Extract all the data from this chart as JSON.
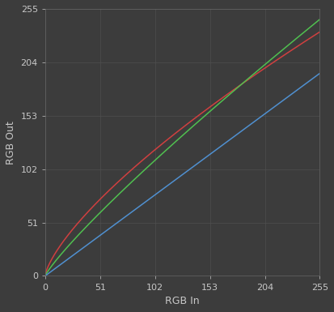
{
  "title": "",
  "xlabel": "RGB In",
  "ylabel": "RGB Out",
  "xlim": [
    0,
    255
  ],
  "ylim": [
    0,
    255
  ],
  "xticks": [
    0,
    51,
    102,
    153,
    204,
    255
  ],
  "yticks": [
    0,
    51,
    102,
    153,
    204,
    255
  ],
  "background_color": "#3c3c3c",
  "axes_color": "#3c3c3c",
  "grid_color": "#525252",
  "text_color": "#c8c8c8",
  "line_blue_color": "#5090d0",
  "line_green_color": "#50c050",
  "line_red_color": "#d04040",
  "blue_out_max": 193.49,
  "green_out_max": 245.055,
  "red_out_max": 233.07,
  "blue_gamma": 1.0,
  "green_gamma": 0.87,
  "red_gamma": 0.72,
  "line_width": 1.1,
  "tick_fontsize": 8,
  "label_fontsize": 9
}
